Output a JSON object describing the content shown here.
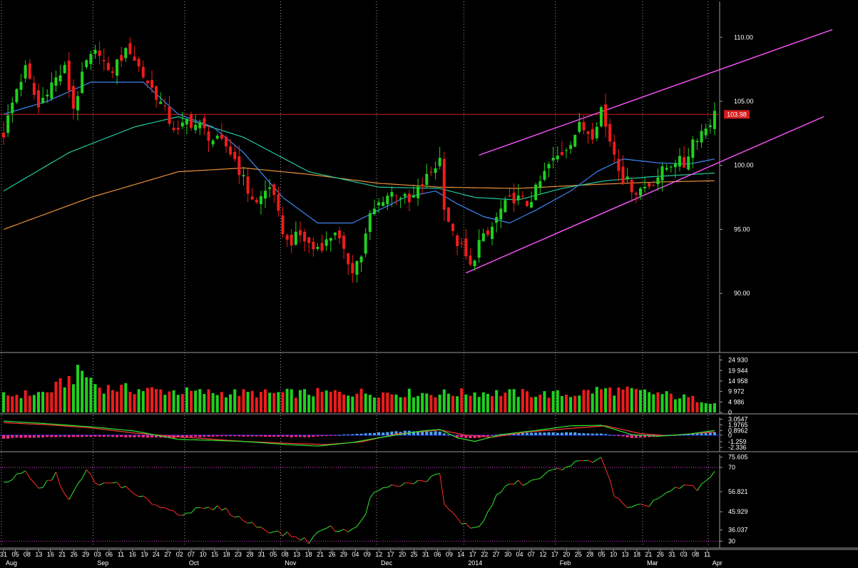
{
  "chart_data": {
    "type": "candlestick",
    "price_panel": {
      "y_ticks": [
        "110.00",
        "105.00",
        "100.00",
        "95.00",
        "90.00"
      ],
      "y_tick_values": [
        110,
        105,
        100,
        95,
        90
      ],
      "ylim": [
        85.5,
        112.8
      ],
      "last_price_label": "103.98",
      "last_price": 103.98,
      "horizontal_line": 103.98,
      "colors": {
        "up": "#1fd11f",
        "down": "#ee1c1c",
        "ma_fast": "#3f86f0",
        "ma_mid": "#22c9a0",
        "ma_slow": "#e8923a",
        "channel": "#ff55ff",
        "hline": "#d21c1c",
        "background": "#000000"
      }
    },
    "volume_panel": {
      "y_ticks": [
        "24 930",
        "19 944",
        "14 958",
        "9 972",
        "4 986",
        "0"
      ],
      "y_tick_values": [
        24930,
        19944,
        14958,
        9972,
        4986,
        0
      ],
      "ylim": [
        0,
        27500
      ]
    },
    "macd_panel": {
      "y_ticks": [
        "3.0547",
        "1.9765",
        "0.8962",
        "0",
        "-1.259",
        "-2.336"
      ],
      "y_tick_values": [
        3.0547,
        1.9765,
        0.8962,
        0,
        -1.259,
        -2.336
      ],
      "ylim": [
        -2.9,
        3.4
      ]
    },
    "rsi_panel": {
      "y_ticks": [
        "75.605",
        "70",
        "56.821",
        "45.929",
        "36.037",
        "30"
      ],
      "y_tick_values": [
        75.605,
        70,
        56.821,
        45.929,
        36.037,
        30
      ],
      "ylim": [
        27,
        77
      ],
      "overbought": 70,
      "oversold": 30
    },
    "x_axis": {
      "day_labels": [
        "31",
        "05",
        "08",
        "13",
        "16",
        "21",
        "26",
        "29",
        "03",
        "06",
        "11",
        "16",
        "19",
        "24",
        "27",
        "02",
        "07",
        "10",
        "15",
        "18",
        "23",
        "28",
        "31",
        "05",
        "08",
        "13",
        "18",
        "21",
        "26",
        "29",
        "04",
        "09",
        "12",
        "17",
        "20",
        "25",
        "31",
        "06",
        "09",
        "14",
        "17",
        "22",
        "27",
        "30",
        "04",
        "07",
        "12",
        "17",
        "20",
        "25",
        "28",
        "05",
        "10",
        "13",
        "18",
        "21",
        "26",
        "31",
        "03",
        "08",
        "11"
      ],
      "month_labels": [
        "Aug",
        "Sep",
        "Oct",
        "Nov",
        "Dec",
        "2014",
        "Feb",
        "Mar",
        "Apr"
      ]
    },
    "price_path": [
      [
        0,
        102.5
      ],
      [
        3,
        106
      ],
      [
        5,
        107.5
      ],
      [
        8,
        104.5
      ],
      [
        10,
        106
      ],
      [
        14,
        107.5
      ],
      [
        16,
        104.5
      ],
      [
        19,
        108
      ],
      [
        22,
        109
      ],
      [
        24,
        107
      ],
      [
        27,
        108.5
      ],
      [
        29,
        109
      ],
      [
        32,
        107
      ],
      [
        35,
        105.5
      ],
      [
        38,
        103.5
      ],
      [
        40,
        102.5
      ],
      [
        42,
        103.5
      ],
      [
        45,
        103
      ],
      [
        48,
        102
      ],
      [
        51,
        101.5
      ],
      [
        53,
        100.5
      ],
      [
        56,
        98
      ],
      [
        58,
        97
      ],
      [
        61,
        98.5
      ],
      [
        63,
        96
      ],
      [
        65,
        94
      ],
      [
        68,
        94.5
      ],
      [
        71,
        93.5
      ],
      [
        74,
        94
      ],
      [
        76,
        95
      ],
      [
        78,
        93
      ],
      [
        80,
        92
      ],
      [
        82,
        93
      ],
      [
        84,
        96
      ],
      [
        87,
        97.5
      ],
      [
        90,
        98
      ],
      [
        93,
        97
      ],
      [
        96,
        98.5
      ],
      [
        98,
        99.5
      ],
      [
        100,
        100.5
      ],
      [
        101,
        97
      ],
      [
        103,
        94.5
      ],
      [
        105,
        93.5
      ],
      [
        107,
        92
      ],
      [
        109,
        94
      ],
      [
        111,
        94.5
      ],
      [
        114,
        96.5
      ],
      [
        117,
        97.5
      ],
      [
        120,
        97
      ],
      [
        122,
        98
      ],
      [
        125,
        100
      ],
      [
        128,
        101
      ],
      [
        130,
        102
      ],
      [
        132,
        103
      ],
      [
        135,
        102.5
      ],
      [
        137,
        104.5
      ],
      [
        138,
        103
      ],
      [
        140,
        101
      ],
      [
        142,
        99
      ],
      [
        145,
        98
      ],
      [
        148,
        98.5
      ],
      [
        151,
        99.5
      ],
      [
        154,
        100.5
      ],
      [
        156,
        100
      ],
      [
        158,
        102
      ],
      [
        161,
        103
      ],
      [
        163,
        103.98
      ]
    ],
    "ma_fast": [
      [
        0,
        104
      ],
      [
        10,
        105
      ],
      [
        20,
        106.5
      ],
      [
        32,
        106.5
      ],
      [
        40,
        104
      ],
      [
        48,
        103
      ],
      [
        55,
        101
      ],
      [
        64,
        97.5
      ],
      [
        72,
        95.5
      ],
      [
        80,
        95.5
      ],
      [
        86,
        96.5
      ],
      [
        92,
        97.5
      ],
      [
        99,
        98
      ],
      [
        104,
        97
      ],
      [
        110,
        96
      ],
      [
        116,
        95.5
      ],
      [
        122,
        96.5
      ],
      [
        130,
        98
      ],
      [
        136,
        99.5
      ],
      [
        142,
        100.5
      ],
      [
        150,
        100.2
      ],
      [
        157,
        100.1
      ],
      [
        163,
        100.5
      ]
    ],
    "ma_mid": [
      [
        0,
        98
      ],
      [
        15,
        101
      ],
      [
        30,
        103
      ],
      [
        40,
        103.8
      ],
      [
        55,
        102.2
      ],
      [
        70,
        99.5
      ],
      [
        86,
        98.3
      ],
      [
        100,
        98.2
      ],
      [
        108,
        97.5
      ],
      [
        118,
        97.3
      ],
      [
        128,
        98.2
      ],
      [
        138,
        98.8
      ],
      [
        148,
        99.1
      ],
      [
        163,
        99.4
      ]
    ],
    "ma_slow": [
      [
        0,
        95
      ],
      [
        20,
        97.5
      ],
      [
        40,
        99.5
      ],
      [
        55,
        99.8
      ],
      [
        70,
        99.3
      ],
      [
        86,
        98.6
      ],
      [
        100,
        98.3
      ],
      [
        118,
        98.2
      ],
      [
        135,
        98.5
      ],
      [
        150,
        98.7
      ],
      [
        163,
        98.8
      ]
    ],
    "channel_upper": [
      [
        109,
        100.8
      ],
      [
        190,
        110.6
      ]
    ],
    "channel_lower": [
      [
        106,
        91.6
      ],
      [
        188,
        103.8
      ]
    ],
    "volume": [
      [
        0,
        8000
      ],
      [
        10,
        9500
      ],
      [
        18,
        19500
      ],
      [
        22,
        12000
      ],
      [
        30,
        11000
      ],
      [
        45,
        9500
      ],
      [
        60,
        9000
      ],
      [
        80,
        9500
      ],
      [
        100,
        9000
      ],
      [
        110,
        9500
      ],
      [
        130,
        8500
      ],
      [
        137,
        11000
      ],
      [
        150,
        9000
      ],
      [
        163,
        5000
      ]
    ],
    "macd": [
      [
        0,
        2.7
      ],
      [
        10,
        2.2
      ],
      [
        20,
        1.6
      ],
      [
        30,
        0.8
      ],
      [
        40,
        -0.8
      ],
      [
        55,
        -1.2
      ],
      [
        65,
        -1.8
      ],
      [
        72,
        -2.1
      ],
      [
        80,
        -1.4
      ],
      [
        86,
        -0.5
      ],
      [
        96,
        0.8
      ],
      [
        100,
        1.1
      ],
      [
        104,
        -0.5
      ],
      [
        108,
        -1.2
      ],
      [
        114,
        0.1
      ],
      [
        122,
        0.9
      ],
      [
        130,
        1.8
      ],
      [
        137,
        1.9
      ],
      [
        144,
        0.1
      ],
      [
        150,
        -0.2
      ],
      [
        157,
        0.2
      ],
      [
        163,
        0.9
      ]
    ],
    "macd_signal": [
      [
        0,
        2.4
      ],
      [
        10,
        2.0
      ],
      [
        20,
        1.4
      ],
      [
        30,
        0.4
      ],
      [
        40,
        -0.3
      ],
      [
        55,
        -1.2
      ],
      [
        66,
        -1.6
      ],
      [
        74,
        -1.8
      ],
      [
        82,
        -1.3
      ],
      [
        90,
        0.2
      ],
      [
        100,
        1.0
      ],
      [
        106,
        0.0
      ],
      [
        112,
        -0.4
      ],
      [
        120,
        0.6
      ],
      [
        130,
        1.3
      ],
      [
        138,
        1.8
      ],
      [
        146,
        0.3
      ],
      [
        152,
        -0.1
      ],
      [
        163,
        0.6
      ]
    ],
    "macd_hist": [
      [
        0,
        -0.6
      ],
      [
        10,
        -0.4
      ],
      [
        20,
        -0.3
      ],
      [
        30,
        -0.4
      ],
      [
        40,
        -0.5
      ],
      [
        50,
        -0.2
      ],
      [
        60,
        -0.3
      ],
      [
        70,
        -0.4
      ],
      [
        78,
        0.1
      ],
      [
        86,
        0.5
      ],
      [
        96,
        0.9
      ],
      [
        100,
        0.6
      ],
      [
        104,
        -0.4
      ],
      [
        108,
        -0.6
      ],
      [
        114,
        0.2
      ],
      [
        122,
        0.5
      ],
      [
        130,
        0.5
      ],
      [
        137,
        0.3
      ],
      [
        144,
        -0.5
      ],
      [
        150,
        -0.3
      ],
      [
        157,
        0.2
      ],
      [
        163,
        0.5
      ]
    ],
    "rsi": [
      [
        0,
        62
      ],
      [
        5,
        67
      ],
      [
        8,
        58
      ],
      [
        12,
        66
      ],
      [
        15,
        52
      ],
      [
        19,
        68
      ],
      [
        22,
        60
      ],
      [
        26,
        62
      ],
      [
        30,
        55
      ],
      [
        35,
        50
      ],
      [
        40,
        45
      ],
      [
        45,
        47
      ],
      [
        50,
        48
      ],
      [
        56,
        40
      ],
      [
        62,
        35
      ],
      [
        66,
        33
      ],
      [
        70,
        30
      ],
      [
        74,
        38
      ],
      [
        78,
        35
      ],
      [
        82,
        40
      ],
      [
        85,
        58
      ],
      [
        90,
        60
      ],
      [
        95,
        62
      ],
      [
        100,
        66
      ],
      [
        101,
        50
      ],
      [
        104,
        42
      ],
      [
        107,
        37
      ],
      [
        110,
        40
      ],
      [
        113,
        55
      ],
      [
        117,
        62
      ],
      [
        120,
        61
      ],
      [
        125,
        67
      ],
      [
        130,
        72
      ],
      [
        134,
        73
      ],
      [
        137,
        76
      ],
      [
        140,
        55
      ],
      [
        143,
        47
      ],
      [
        148,
        50
      ],
      [
        151,
        55
      ],
      [
        154,
        58
      ],
      [
        157,
        60
      ],
      [
        159,
        58
      ],
      [
        163,
        67
      ]
    ]
  }
}
